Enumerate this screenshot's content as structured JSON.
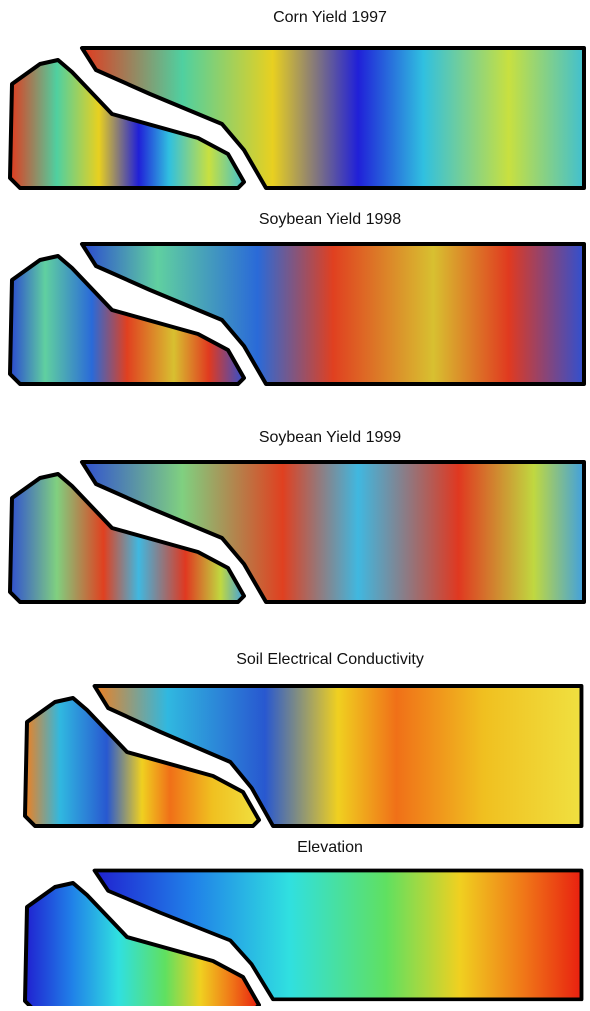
{
  "panels": [
    {
      "title": "Corn Yield 1997"
    },
    {
      "title": "Soybean Yield 1998"
    },
    {
      "title": "Soybean Yield 1999"
    },
    {
      "title": "Soil Electrical Conductivity"
    },
    {
      "title": "Elevation"
    }
  ]
}
